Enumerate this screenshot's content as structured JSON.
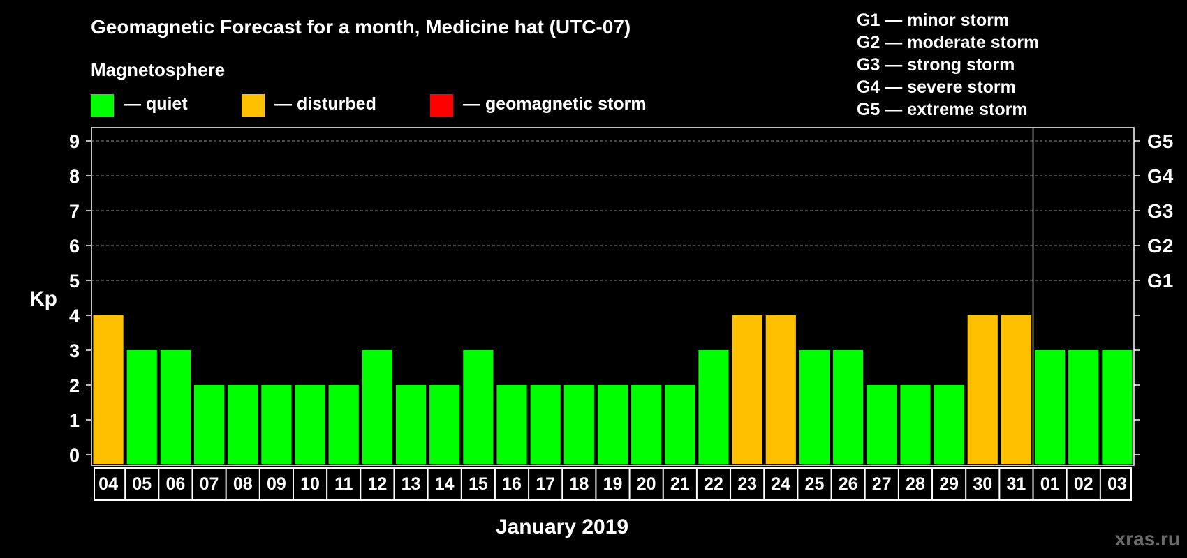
{
  "header": {
    "title": "Geomagnetic Forecast for a month, Medicine hat (UTC-07)",
    "subtitle": "Magnetosphere"
  },
  "legend": {
    "items": [
      {
        "label": "— quiet",
        "color": "#00ff00"
      },
      {
        "label": "— disturbed",
        "color": "#ffc000"
      },
      {
        "label": "— geomagnetic storm",
        "color": "#ff0000"
      }
    ]
  },
  "g_scale": [
    "G1 — minor storm",
    "G2 — moderate storm",
    "G3 — strong storm",
    "G4 — severe storm",
    "G5 — extreme storm"
  ],
  "watermark": "xras.ru",
  "chart_data": {
    "type": "bar",
    "title": "Geomagnetic Forecast for a month, Medicine hat (UTC-07)",
    "xlabel": "January 2019",
    "ylabel": "Kp",
    "ylim": [
      0,
      9
    ],
    "yticks": [
      "0",
      "1",
      "2",
      "3",
      "4",
      "5",
      "6",
      "7",
      "8",
      "9"
    ],
    "right_ticks": [
      {
        "value": 5,
        "label": "G1"
      },
      {
        "value": 6,
        "label": "G2"
      },
      {
        "value": 7,
        "label": "G3"
      },
      {
        "value": 8,
        "label": "G4"
      },
      {
        "value": 9,
        "label": "G5"
      }
    ],
    "grid": "dashed horizontal at 5-9",
    "categories": [
      "04",
      "05",
      "06",
      "07",
      "08",
      "09",
      "10",
      "11",
      "12",
      "13",
      "14",
      "15",
      "16",
      "17",
      "18",
      "19",
      "20",
      "21",
      "22",
      "23",
      "24",
      "25",
      "26",
      "27",
      "28",
      "29",
      "30",
      "31",
      "01",
      "02",
      "03"
    ],
    "values": [
      4,
      3,
      3,
      2,
      2,
      2,
      2,
      2,
      3,
      2,
      2,
      3,
      2,
      2,
      2,
      2,
      2,
      2,
      3,
      4,
      4,
      3,
      3,
      2,
      2,
      2,
      4,
      4,
      3,
      3,
      3
    ],
    "month_divider_after": "31",
    "colors": {
      "quiet": "#00ff00",
      "disturbed": "#ffc000",
      "storm": "#ff0000"
    }
  }
}
